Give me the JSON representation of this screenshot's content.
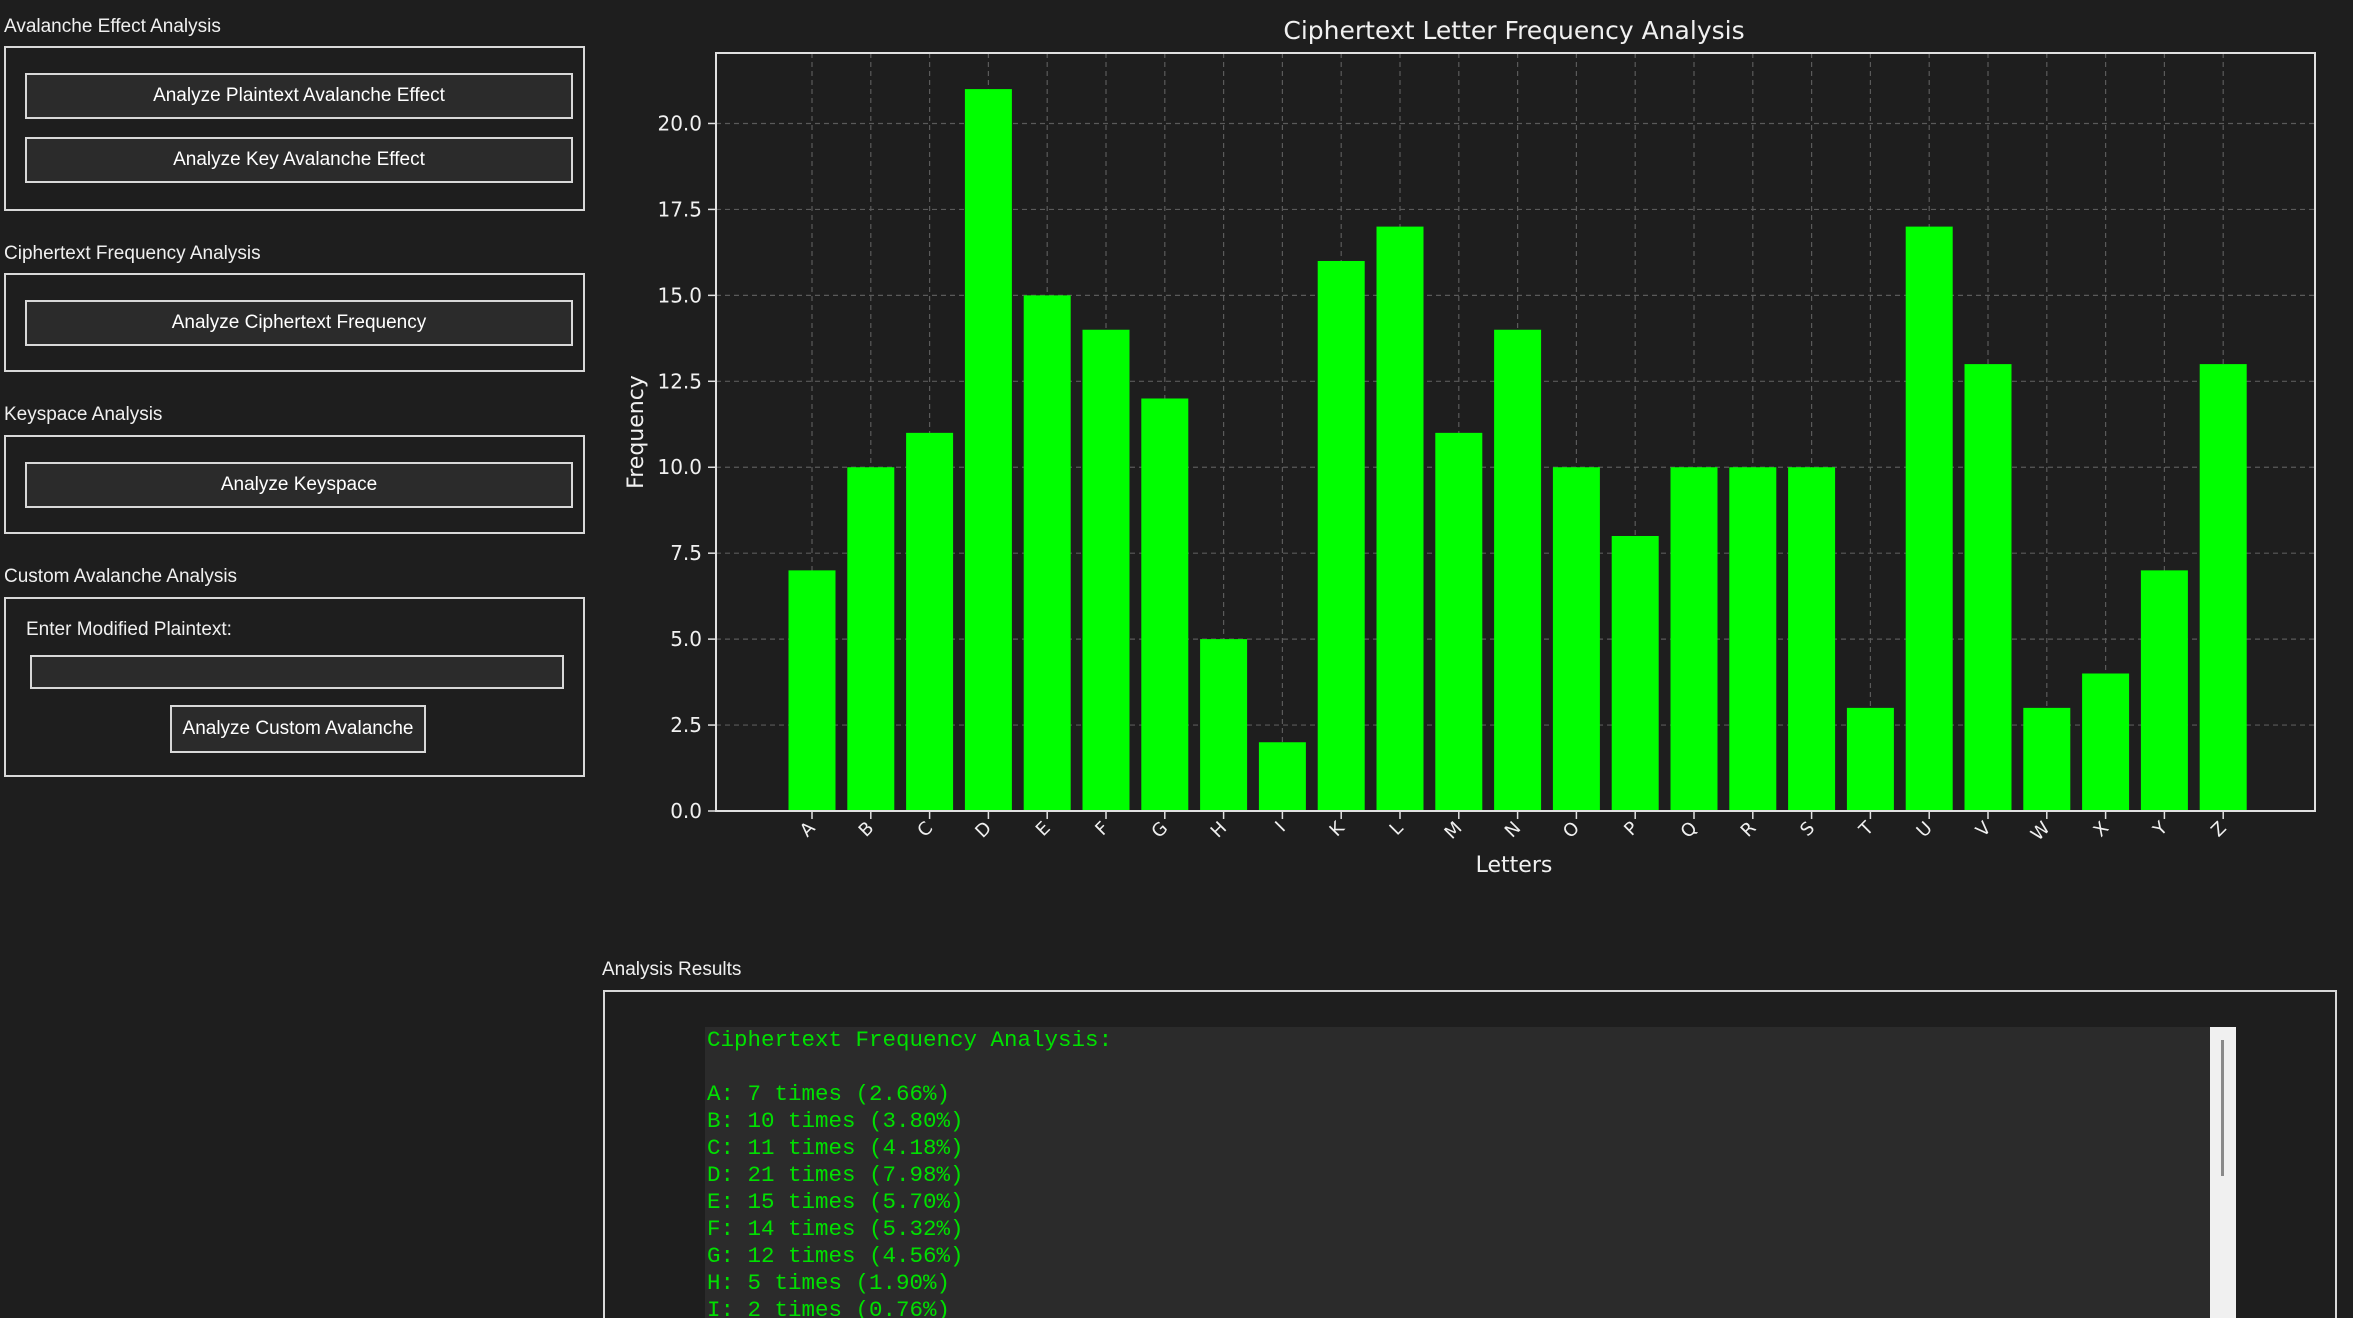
{
  "sections": {
    "avalanche": {
      "title": "Avalanche Effect Analysis",
      "btn_plaintext": "Analyze Plaintext Avalanche Effect",
      "btn_key": "Analyze Key Avalanche Effect"
    },
    "frequency": {
      "title": "Ciphertext Frequency Analysis",
      "btn": "Analyze Ciphertext Frequency"
    },
    "keyspace": {
      "title": "Keyspace Analysis",
      "btn": "Analyze Keyspace"
    },
    "custom": {
      "title": "Custom Avalanche Analysis",
      "label": "Enter Modified Plaintext:",
      "input_value": "",
      "btn": "Analyze Custom Avalanche"
    }
  },
  "results": {
    "title": "Analysis Results",
    "heading": "Ciphertext Frequency Analysis:",
    "lines": [
      "A: 7 times (2.66%)",
      "B: 10 times (3.80%)",
      "C: 11 times (4.18%)",
      "D: 21 times (7.98%)",
      "E: 15 times (5.70%)",
      "F: 14 times (5.32%)",
      "G: 12 times (4.56%)",
      "H: 5 times (1.90%)",
      "I: 2 times (0.76%)"
    ]
  },
  "colors": {
    "background": "#1e1e1e",
    "bar": "#00ff00",
    "result_text": "#00e000",
    "border": "#d8d8d8"
  },
  "chart_data": {
    "type": "bar",
    "title": "Ciphertext Letter Frequency Analysis",
    "xlabel": "Letters",
    "ylabel": "Frequency",
    "categories": [
      "A",
      "B",
      "C",
      "D",
      "E",
      "F",
      "G",
      "H",
      "I",
      "K",
      "L",
      "M",
      "N",
      "O",
      "P",
      "Q",
      "R",
      "S",
      "T",
      "U",
      "V",
      "W",
      "X",
      "Y",
      "Z"
    ],
    "values": [
      7,
      10,
      11,
      21,
      15,
      14,
      12,
      5,
      2,
      16,
      17,
      11,
      14,
      10,
      8,
      10,
      10,
      10,
      3,
      17,
      13,
      3,
      4,
      7,
      13
    ],
    "ylim": [
      0,
      22.05
    ],
    "yticks": [
      "0.0",
      "2.5",
      "5.0",
      "7.5",
      "10.0",
      "12.5",
      "15.0",
      "17.5",
      "20.0"
    ],
    "grid": true,
    "bar_color": "#00ff00"
  }
}
